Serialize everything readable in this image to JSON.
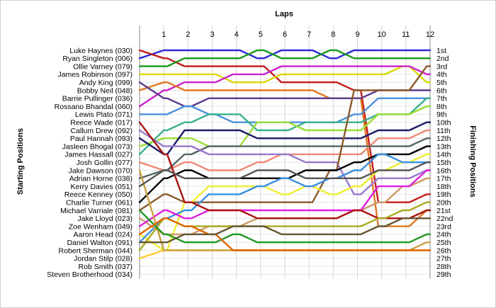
{
  "chart_data": {
    "type": "line",
    "title": "",
    "xlabel": "Laps",
    "ylabel_left": "Starting Positions",
    "ylabel_right": "Finishing Positions",
    "laps": [
      1,
      2,
      3,
      4,
      5,
      6,
      7,
      8,
      9,
      10,
      11,
      12
    ],
    "start_labels": [
      "Luke Haynes (030)",
      "Ryan Singleton (006)",
      "Ollie Varney (079)",
      "James Robinson (097)",
      "Andy King (099)",
      "Bobby Neil (048)",
      "Barrie Pullinger (036)",
      "Rossano Bhandal (060)",
      "Lewis Plato (071)",
      "Reece Wade (017)",
      "Callum Drew (092)",
      "Paul Hannah (093)",
      "Jasleen Bhogal (073)",
      "James Hassall (027)",
      "Josh Gollin (077)",
      "Jake Dawson (070)",
      "Adrian Horne (038)",
      "Kerry Davies (051)",
      "Reece Kenney (050)",
      "Charlie Turner (061)",
      "Michael Varriale (081)",
      "Jake Lloyd (023)",
      "Zoe Wenham (049)",
      "Aaron Head (024)",
      "Daniel Walton (091)",
      "Robert Sherman (044)",
      "Jordan Stilp (028)",
      "Rob Smith (037)",
      "Steven Brotherhood (034)"
    ],
    "finish_labels": [
      "1st",
      "2nd",
      "3rd",
      "4th",
      "5th",
      "6th",
      "7th",
      "8th",
      "9th",
      "10th",
      "11th",
      "12th",
      "13th",
      "14th",
      "15th",
      "16th",
      "17th",
      "18th",
      "19th",
      "20th",
      "21st",
      "22nd",
      "23rd",
      "24th",
      "25th",
      "26th",
      "27th",
      "28th",
      "29th"
    ],
    "y_range": [
      1,
      29
    ],
    "grid": true,
    "series": [
      {
        "color": "#2b2bd6",
        "positions": [
          2,
          1,
          1,
          1,
          1,
          2,
          1,
          1,
          2,
          1,
          1,
          1,
          1
        ]
      },
      {
        "color": "#c41c1c",
        "positions": [
          1,
          2,
          3,
          3,
          3,
          3,
          5,
          5,
          5,
          6,
          20,
          20,
          19
        ]
      },
      {
        "color": "#1a9a1a",
        "positions": [
          3,
          3,
          2,
          2,
          2,
          1,
          2,
          2,
          1,
          2,
          2,
          2,
          2
        ]
      },
      {
        "color": "#d8d800",
        "positions": [
          4,
          4,
          4,
          4,
          5,
          5,
          4,
          4,
          4,
          4,
          4,
          3,
          5
        ]
      },
      {
        "color": "#cc22cc",
        "positions": [
          8,
          6,
          5,
          5,
          4,
          4,
          3,
          3,
          3,
          3,
          3,
          3,
          4
        ]
      },
      {
        "color": "#e07820",
        "positions": [
          6,
          5,
          6,
          6,
          6,
          6,
          6,
          6,
          7,
          7,
          23,
          23,
          21
        ]
      },
      {
        "color": "#5c3a8c",
        "positions": [
          5,
          7,
          8,
          7,
          7,
          7,
          7,
          7,
          7,
          7,
          6,
          6,
          6
        ]
      },
      {
        "color": "#4a90d9",
        "positions": [
          9,
          9,
          8,
          9,
          10,
          10,
          10,
          10,
          10,
          9,
          7,
          7,
          7
        ]
      },
      {
        "color": "#38b090",
        "positions": [
          14,
          11,
          10,
          9,
          9,
          11,
          11,
          10,
          10,
          10,
          9,
          9,
          7
        ]
      },
      {
        "color": "#99dd33",
        "positions": [
          13,
          12,
          12,
          13,
          13,
          10,
          10,
          11,
          11,
          11,
          9,
          9,
          8
        ]
      },
      {
        "color": "#1a1a66",
        "positions": [
          12,
          14,
          11,
          11,
          11,
          12,
          12,
          12,
          12,
          12,
          11,
          11,
          10
        ]
      },
      {
        "color": "#ee8877",
        "positions": [
          15,
          16,
          15,
          16,
          16,
          15,
          14,
          14,
          14,
          14,
          12,
          12,
          11
        ]
      },
      {
        "color": "#556666",
        "positions": [
          17,
          16,
          14,
          13,
          13,
          13,
          13,
          13,
          13,
          13,
          13,
          13,
          12
        ]
      },
      {
        "color": "#9977cc",
        "positions": [
          11,
          13,
          13,
          14,
          14,
          14,
          14,
          15,
          15,
          19,
          17,
          17,
          16
        ]
      },
      {
        "color": "#8b5a2b",
        "positions": [
          21,
          19,
          20,
          20,
          20,
          20,
          20,
          20,
          16,
          6,
          6,
          6,
          3
        ]
      },
      {
        "color": "#000000",
        "positions": [
          20,
          17,
          16,
          17,
          17,
          17,
          17,
          16,
          16,
          15,
          14,
          14,
          13
        ]
      },
      {
        "color": "#eeee33",
        "positions": [
          24,
          26,
          20,
          18,
          18,
          18,
          19,
          18,
          19,
          18,
          16,
          15,
          14
        ]
      },
      {
        "color": "#ffcc33",
        "positions": [
          27,
          26,
          26,
          26,
          26,
          26,
          26,
          26,
          26,
          26,
          26,
          26,
          26
        ]
      },
      {
        "color": "#3a8fe0",
        "positions": [
          25,
          22,
          21,
          19,
          19,
          18,
          17,
          18,
          17,
          16,
          14,
          15,
          15
        ]
      },
      {
        "color": "#cc9966",
        "positions": [
          22,
          24,
          24,
          23,
          23,
          22,
          22,
          22,
          22,
          21,
          20,
          18,
          17
        ]
      },
      {
        "color": "#e020e0",
        "positions": [
          23,
          21,
          22,
          21,
          21,
          21,
          21,
          21,
          21,
          21,
          18,
          18,
          16
        ]
      },
      {
        "color": "#aa1111",
        "positions": [
          10,
          14,
          20,
          21,
          21,
          22,
          22,
          22,
          22,
          21,
          22,
          22,
          21
        ]
      },
      {
        "color": "#aaaa22",
        "positions": [
          26,
          22,
          23,
          23,
          23,
          23,
          23,
          23,
          23,
          23,
          22,
          21,
          20
        ]
      },
      {
        "color": "#c8a040",
        "positions": [
          16,
          26,
          26,
          26,
          26,
          26,
          26,
          26,
          26,
          26,
          26,
          26,
          25
        ]
      },
      {
        "color": "#229922",
        "positions": [
          21,
          24,
          25,
          25,
          24,
          25,
          25,
          25,
          25,
          25,
          25,
          25,
          24
        ]
      },
      {
        "color": "#dd6600",
        "positions": [
          24,
          22,
          23,
          24,
          26,
          26,
          26,
          26,
          26,
          26,
          26,
          26,
          26
        ]
      },
      {
        "color": "#555555",
        "positions": [
          18,
          16,
          17,
          17,
          17,
          16,
          16,
          17,
          17,
          17,
          16,
          16,
          15
        ]
      },
      {
        "color": "#665533",
        "positions": [
          25,
          25,
          24,
          24,
          23,
          23,
          24,
          24,
          24,
          24,
          23,
          22,
          22
        ]
      }
    ]
  }
}
